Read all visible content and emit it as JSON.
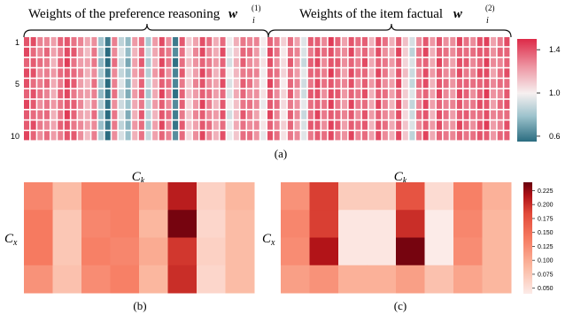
{
  "colors": {
    "diverging": [
      "#2b6c80",
      "#9ec3cd",
      "#f6f0f0",
      "#ee99a6",
      "#dd2a48"
    ],
    "sequential": [
      "#fcebe8",
      "#fbb79f",
      "#f67a60",
      "#e24a3a",
      "#b01217",
      "#67000d"
    ]
  },
  "chart_data": [
    {
      "type": "heatmap",
      "panel_label": "(a)",
      "brace_left_label": "Weights of the preference reasoning",
      "brace_left_math": "w",
      "brace_left_sub": "i",
      "brace_left_sup": "(1)",
      "brace_right_label": "Weights of the item factual",
      "brace_right_math": "w",
      "brace_right_sub": "i",
      "brace_right_sup": "(2)",
      "rows": 10,
      "row_tick_labels": [
        "1",
        "5",
        "10"
      ],
      "row_tick_rows": [
        1,
        5,
        10
      ],
      "column_count": 72,
      "column_base_values": [
        1.4,
        1.38,
        1.3,
        1.32,
        1.2,
        1.33,
        1.42,
        1.35,
        1.25,
        1.18,
        1.3,
        0.8,
        0.55,
        1.3,
        0.9,
        0.75,
        1.2,
        1.35,
        0.85,
        1.2,
        1.4,
        1.3,
        0.6,
        1.35,
        1.1,
        1.25,
        1.4,
        1.3,
        1.2,
        1.38,
        0.95,
        1.15,
        1.35,
        1.3,
        1.25,
        1.0,
        1.4,
        1.3,
        1.05,
        1.35,
        1.25,
        0.92,
        1.35,
        1.4,
        1.3,
        1.42,
        1.35,
        1.25,
        1.4,
        1.3,
        1.38,
        1.2,
        1.4,
        1.3,
        1.2,
        1.4,
        1.1,
        0.9,
        1.3,
        1.4,
        1.2,
        1.4,
        1.3,
        1.25,
        1.4,
        1.35,
        1.3,
        1.38,
        1.42,
        1.25,
        1.32,
        1.38
      ],
      "colorbar_ticks": [
        1.4,
        1.0,
        0.6
      ],
      "colorbar_tick_labels": [
        "1.4",
        "1.0",
        "0.6"
      ],
      "color_range": [
        0.55,
        1.5
      ]
    },
    {
      "type": "heatmap",
      "panel_label": "(b)",
      "xlabel_math": "C",
      "xlabel_sub": "k",
      "ylabel_math": "C",
      "ylabel_sub": "x",
      "values": [
        [
          0.13,
          0.085,
          0.135,
          0.135,
          0.1,
          0.21,
          0.065,
          0.09
        ],
        [
          0.14,
          0.075,
          0.13,
          0.135,
          0.09,
          0.235,
          0.06,
          0.085
        ],
        [
          0.14,
          0.075,
          0.135,
          0.13,
          0.1,
          0.195,
          0.065,
          0.085
        ],
        [
          0.12,
          0.08,
          0.125,
          0.135,
          0.09,
          0.2,
          0.06,
          0.085
        ]
      ],
      "color_range": [
        0.04,
        0.24
      ]
    },
    {
      "type": "heatmap",
      "panel_label": "(c)",
      "xlabel_math": "C",
      "xlabel_sub": "k",
      "ylabel_math": "C",
      "ylabel_sub": "x",
      "values": [
        [
          0.12,
          0.19,
          0.07,
          0.07,
          0.175,
          0.055,
          0.135,
          0.095
        ],
        [
          0.13,
          0.19,
          0.045,
          0.045,
          0.2,
          0.04,
          0.13,
          0.09
        ],
        [
          0.125,
          0.215,
          0.045,
          0.045,
          0.235,
          0.04,
          0.125,
          0.09
        ],
        [
          0.11,
          0.12,
          0.095,
          0.095,
          0.11,
          0.08,
          0.105,
          0.09
        ]
      ],
      "colorbar_ticks": [
        0.225,
        0.2,
        0.175,
        0.15,
        0.125,
        0.1,
        0.075,
        0.05
      ],
      "colorbar_tick_labels": [
        "0.225",
        "0.200",
        "0.175",
        "0.150",
        "0.125",
        "0.100",
        "0.075",
        "0.050"
      ],
      "color_range": [
        0.04,
        0.24
      ]
    }
  ]
}
